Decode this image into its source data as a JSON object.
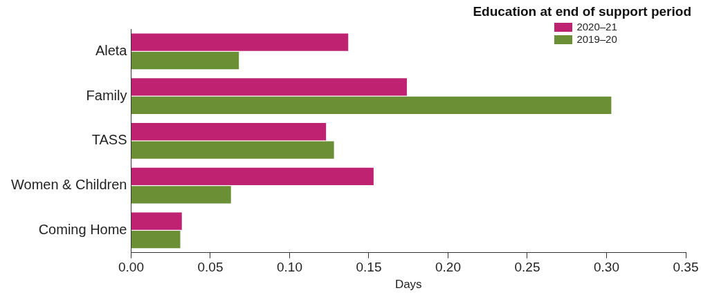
{
  "chart_data": {
    "type": "bar",
    "orientation": "horizontal",
    "legend_title": "Education at end of support period",
    "xlabel": "Days",
    "categories": [
      "Aleta",
      "Family",
      "TASS",
      "Women & Children",
      "Coming Home"
    ],
    "series": [
      {
        "name": "2020–21",
        "color": "#bf2270",
        "values": [
          0.137,
          0.174,
          0.123,
          0.153,
          0.032
        ]
      },
      {
        "name": "2019–20",
        "color": "#6a8f35",
        "values": [
          0.068,
          0.303,
          0.128,
          0.063,
          0.031
        ]
      }
    ],
    "xlim": [
      0,
      0.35
    ],
    "xticks": [
      {
        "value": 0,
        "label": "0.00"
      },
      {
        "value": 0.05,
        "label": "0.05"
      },
      {
        "value": 0.1,
        "label": "0.10"
      },
      {
        "value": 0.15,
        "label": "0.15"
      },
      {
        "value": 0.2,
        "label": "0.20"
      },
      {
        "value": 0.25,
        "label": "0.25"
      },
      {
        "value": 0.3,
        "label": "0.30"
      },
      {
        "value": 0.35,
        "label": "0.35"
      }
    ],
    "grid": false,
    "legend": "top right"
  }
}
